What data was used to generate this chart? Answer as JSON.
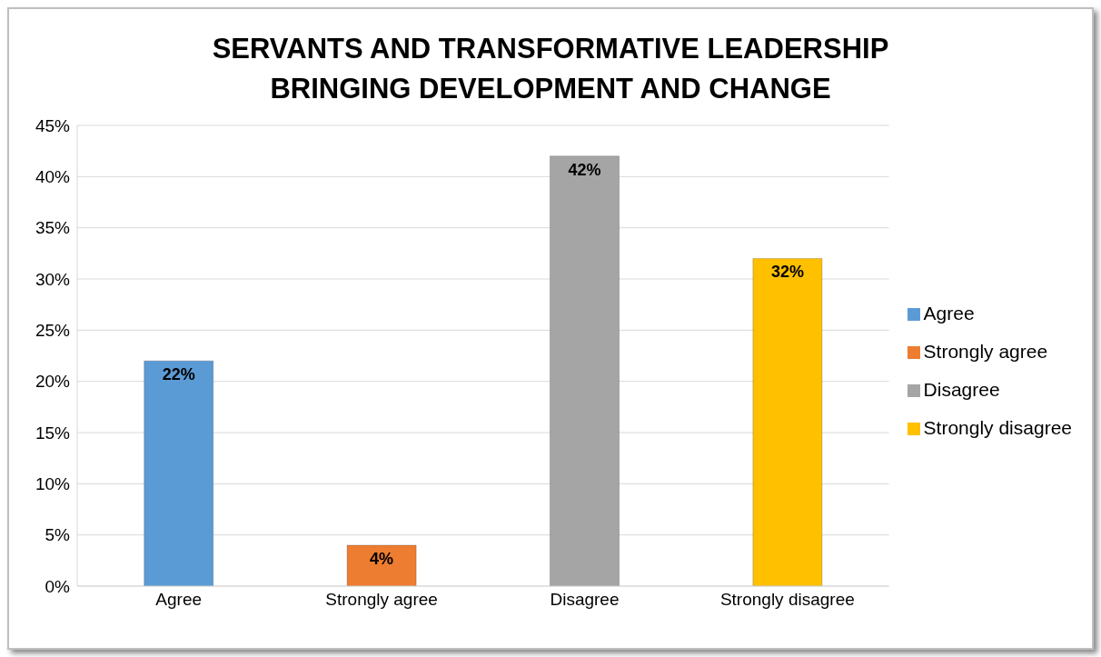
{
  "chart_data": {
    "type": "bar",
    "title": "SERVANTS AND TRANSFORMATIVE LEADERSHIP BRINGING DEVELOPMENT AND CHANGE",
    "categories": [
      "Agree",
      "Strongly agree",
      "Disagree",
      "Strongly disagree"
    ],
    "series": [
      {
        "name": "Agree",
        "color": "#5b9bd5",
        "values": [
          22,
          null,
          null,
          null
        ],
        "value_labels": [
          "22%",
          null,
          null,
          null
        ]
      },
      {
        "name": "Strongly agree",
        "color": "#ed7d31",
        "values": [
          null,
          4,
          null,
          null
        ],
        "value_labels": [
          null,
          "4%",
          null,
          null
        ]
      },
      {
        "name": "Disagree",
        "color": "#a5a5a5",
        "values": [
          null,
          null,
          42,
          null
        ],
        "value_labels": [
          null,
          null,
          "42%",
          null
        ]
      },
      {
        "name": "Strongly disagree",
        "color": "#ffc000",
        "values": [
          null,
          null,
          null,
          32
        ],
        "value_labels": [
          null,
          null,
          null,
          "32%"
        ]
      }
    ],
    "stacked": true,
    "ylim": [
      0,
      45
    ],
    "yticks": [
      {
        "value": 0,
        "label": "0%"
      },
      {
        "value": 5,
        "label": "5%"
      },
      {
        "value": 10,
        "label": "10%"
      },
      {
        "value": 15,
        "label": "15%"
      },
      {
        "value": 20,
        "label": "20%"
      },
      {
        "value": 25,
        "label": "25%"
      },
      {
        "value": 30,
        "label": "30%"
      },
      {
        "value": 35,
        "label": "35%"
      },
      {
        "value": 40,
        "label": "40%"
      },
      {
        "value": 45,
        "label": "45%"
      }
    ],
    "grid": "y",
    "legend": "right"
  }
}
